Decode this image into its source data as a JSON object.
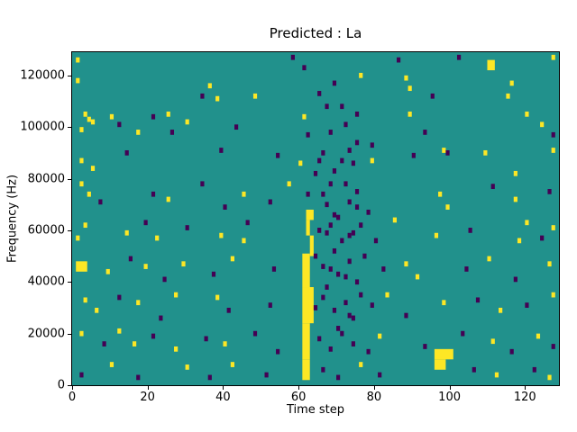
{
  "chart_data": {
    "type": "heatmap",
    "title": "Predicted : La",
    "xlabel": "Time step",
    "ylabel": "Frequency (Hz)",
    "xlim": [
      0,
      129
    ],
    "ylim": [
      0,
      129000
    ],
    "x_ticks": [
      0,
      20,
      40,
      60,
      80,
      100,
      120
    ],
    "y_ticks": [
      0,
      20000,
      40000,
      60000,
      80000,
      100000,
      120000
    ],
    "grid": false,
    "legend": "none",
    "cell_size_hz": 1000,
    "colors": {
      "background": "#21918c",
      "high": "#fde725",
      "low": "#440154",
      "spine": "#000000"
    },
    "cells": {
      "yellow_rects": [
        [
          61,
          2,
          2,
          8
        ],
        [
          61,
          10,
          2,
          14
        ],
        [
          61,
          24,
          3,
          14
        ],
        [
          61,
          38,
          2,
          13
        ],
        [
          63,
          50,
          1,
          8
        ],
        [
          62,
          58,
          1,
          6
        ],
        [
          62,
          64,
          2,
          4
        ],
        [
          96,
          6,
          3,
          4
        ],
        [
          96,
          10,
          5,
          4
        ],
        [
          110,
          122,
          2,
          4
        ],
        [
          1,
          44,
          3,
          4
        ]
      ],
      "yellow_cells": [
        [
          1,
          125
        ],
        [
          1,
          117
        ],
        [
          3,
          104
        ],
        [
          4,
          102
        ],
        [
          2,
          98
        ],
        [
          5,
          101
        ],
        [
          10,
          103
        ],
        [
          17,
          97
        ],
        [
          25,
          104
        ],
        [
          30,
          101
        ],
        [
          36,
          115
        ],
        [
          38,
          110
        ],
        [
          48,
          111
        ],
        [
          61,
          103
        ],
        [
          76,
          119
        ],
        [
          88,
          118
        ],
        [
          89,
          114
        ],
        [
          89,
          104
        ],
        [
          115,
          111
        ],
        [
          116,
          116
        ],
        [
          120,
          104
        ],
        [
          124,
          100
        ],
        [
          127,
          126
        ],
        [
          2,
          86
        ],
        [
          5,
          83
        ],
        [
          60,
          85
        ],
        [
          79,
          86
        ],
        [
          98,
          90
        ],
        [
          117,
          81
        ],
        [
          127,
          90
        ],
        [
          2,
          77
        ],
        [
          4,
          73
        ],
        [
          25,
          71
        ],
        [
          45,
          73
        ],
        [
          57,
          77
        ],
        [
          97,
          73
        ],
        [
          99,
          68
        ],
        [
          117,
          71
        ],
        [
          1,
          56
        ],
        [
          3,
          61
        ],
        [
          14,
          58
        ],
        [
          22,
          56
        ],
        [
          39,
          57
        ],
        [
          45,
          55
        ],
        [
          85,
          63
        ],
        [
          96,
          57
        ],
        [
          118,
          55
        ],
        [
          120,
          62
        ],
        [
          9,
          43
        ],
        [
          19,
          45
        ],
        [
          29,
          46
        ],
        [
          42,
          48
        ],
        [
          88,
          46
        ],
        [
          91,
          41
        ],
        [
          110,
          48
        ],
        [
          126,
          46
        ],
        [
          3,
          32
        ],
        [
          6,
          28
        ],
        [
          17,
          31
        ],
        [
          27,
          34
        ],
        [
          38,
          33
        ],
        [
          83,
          34
        ],
        [
          98,
          31
        ],
        [
          113,
          28
        ],
        [
          127,
          34
        ],
        [
          2,
          19
        ],
        [
          12,
          20
        ],
        [
          16,
          15
        ],
        [
          27,
          13
        ],
        [
          40,
          15
        ],
        [
          81,
          18
        ],
        [
          111,
          16
        ],
        [
          123,
          18
        ],
        [
          10,
          7
        ],
        [
          30,
          6
        ],
        [
          42,
          7
        ],
        [
          76,
          7
        ],
        [
          112,
          3
        ],
        [
          126,
          2
        ],
        [
          127,
          60
        ],
        [
          109,
          89
        ]
      ],
      "purple_cells": [
        [
          58,
          126
        ],
        [
          61,
          122
        ],
        [
          86,
          125
        ],
        [
          102,
          126
        ],
        [
          34,
          111
        ],
        [
          65,
          112
        ],
        [
          67,
          107
        ],
        [
          69,
          116
        ],
        [
          95,
          111
        ],
        [
          12,
          100
        ],
        [
          21,
          103
        ],
        [
          26,
          97
        ],
        [
          43,
          99
        ],
        [
          62,
          96
        ],
        [
          72,
          100
        ],
        [
          75,
          104
        ],
        [
          93,
          97
        ],
        [
          127,
          96
        ],
        [
          14,
          89
        ],
        [
          39,
          90
        ],
        [
          54,
          88
        ],
        [
          65,
          86
        ],
        [
          69,
          82
        ],
        [
          73,
          90
        ],
        [
          90,
          88
        ],
        [
          99,
          89
        ],
        [
          7,
          70
        ],
        [
          21,
          73
        ],
        [
          34,
          77
        ],
        [
          40,
          68
        ],
        [
          52,
          70
        ],
        [
          62,
          73
        ],
        [
          68,
          77
        ],
        [
          73,
          70
        ],
        [
          75,
          74
        ],
        [
          111,
          76
        ],
        [
          126,
          74
        ],
        [
          19,
          62
        ],
        [
          30,
          60
        ],
        [
          46,
          62
        ],
        [
          65,
          59
        ],
        [
          68,
          61
        ],
        [
          71,
          55
        ],
        [
          74,
          58
        ],
        [
          105,
          59
        ],
        [
          124,
          56
        ],
        [
          15,
          48
        ],
        [
          24,
          40
        ],
        [
          37,
          42
        ],
        [
          53,
          44
        ],
        [
          66,
          45
        ],
        [
          70,
          42
        ],
        [
          73,
          47
        ],
        [
          75,
          39
        ],
        [
          104,
          44
        ],
        [
          117,
          40
        ],
        [
          12,
          33
        ],
        [
          23,
          25
        ],
        [
          41,
          28
        ],
        [
          52,
          30
        ],
        [
          66,
          33
        ],
        [
          69,
          28
        ],
        [
          72,
          31
        ],
        [
          74,
          25
        ],
        [
          79,
          30
        ],
        [
          88,
          26
        ],
        [
          107,
          32
        ],
        [
          120,
          30
        ],
        [
          8,
          15
        ],
        [
          21,
          18
        ],
        [
          35,
          17
        ],
        [
          48,
          19
        ],
        [
          54,
          12
        ],
        [
          65,
          17
        ],
        [
          68,
          13
        ],
        [
          71,
          19
        ],
        [
          74,
          15
        ],
        [
          78,
          12
        ],
        [
          93,
          14
        ],
        [
          103,
          19
        ],
        [
          116,
          12
        ],
        [
          127,
          14
        ],
        [
          2,
          3
        ],
        [
          17,
          2
        ],
        [
          36,
          2
        ],
        [
          51,
          3
        ],
        [
          66,
          5
        ],
        [
          70,
          2
        ],
        [
          81,
          3
        ],
        [
          106,
          5
        ],
        [
          122,
          5
        ],
        [
          77,
          49
        ],
        [
          70,
          64
        ],
        [
          67,
          69
        ],
        [
          72,
          77
        ],
        [
          76,
          61
        ],
        [
          69,
          51
        ],
        [
          66,
          89
        ],
        [
          71,
          107
        ],
        [
          68,
          97
        ],
        [
          74,
          85
        ],
        [
          70,
          21
        ],
        [
          67,
          37
        ],
        [
          73,
          57
        ],
        [
          69,
          65
        ],
        [
          66,
          73
        ],
        [
          72,
          41
        ],
        [
          75,
          93
        ],
        [
          64,
          29
        ],
        [
          64,
          49
        ],
        [
          64,
          81
        ],
        [
          78,
          66
        ],
        [
          80,
          55
        ],
        [
          82,
          44
        ],
        [
          76,
          34
        ],
        [
          79,
          92
        ],
        [
          68,
          44
        ],
        [
          71,
          86
        ],
        [
          75,
          68
        ],
        [
          67,
          58
        ],
        [
          73,
          26
        ]
      ]
    }
  }
}
